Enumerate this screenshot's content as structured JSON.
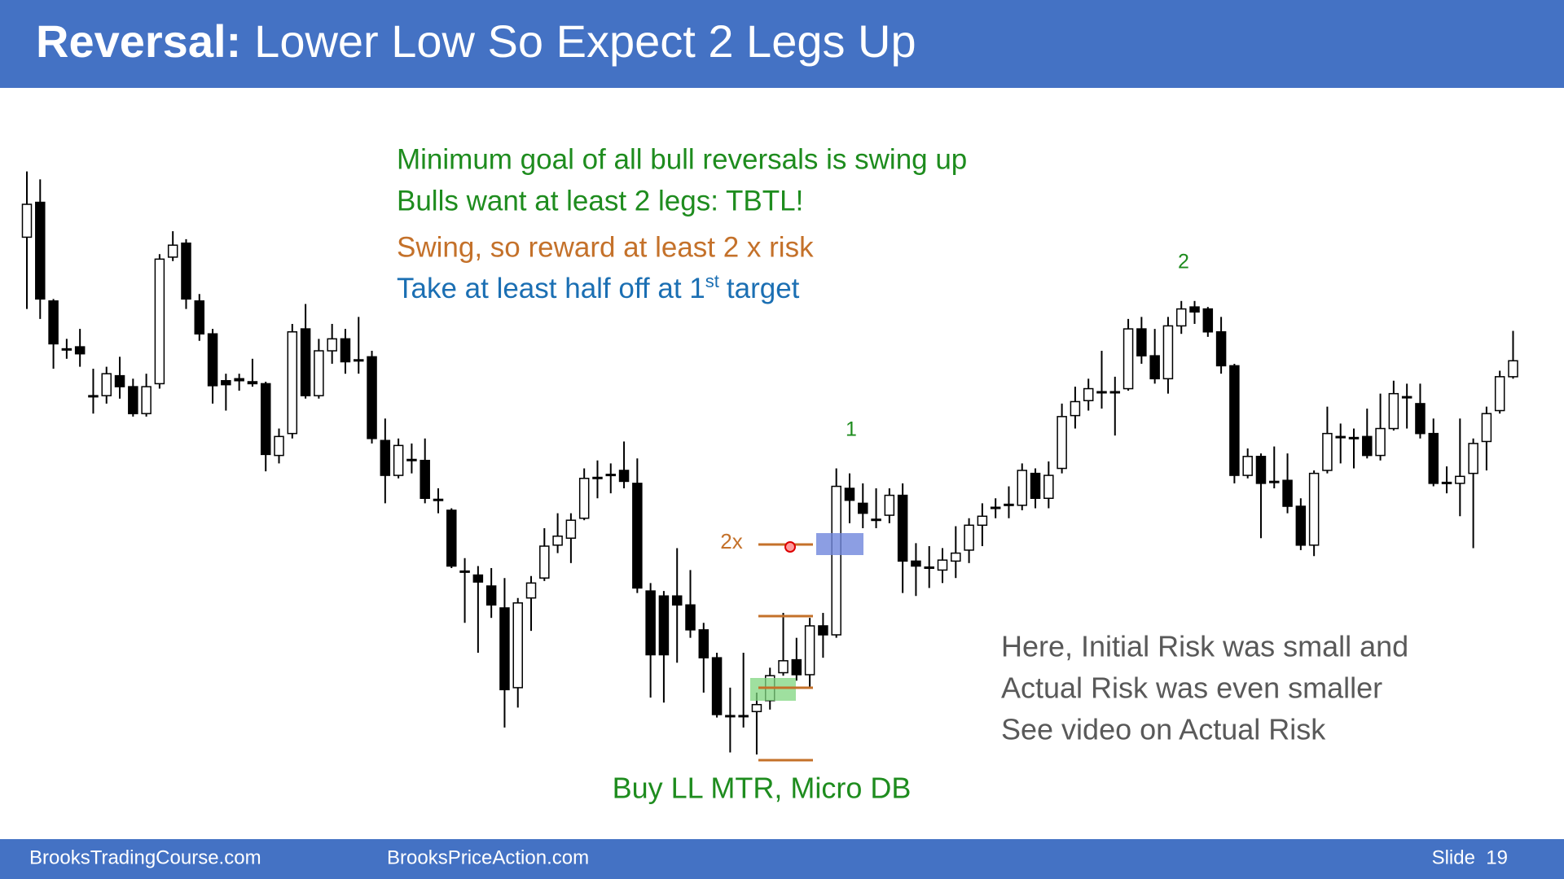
{
  "header": {
    "title_bold": "Reversal:",
    "title_rest": "Lower Low So Expect 2 Legs Up"
  },
  "notes": [
    {
      "text": "Minimum goal of all bull reversals is swing up"
    },
    {
      "text": "Bulls want at least 2 legs: TBTL!"
    },
    {
      "text": "Swing, so reward at least 2 x risk"
    },
    {
      "text": "Take at least half off at 1",
      "sup": "st",
      "tail": "target"
    }
  ],
  "chart_data": {
    "type": "candlestick",
    "open": [
      644,
      679,
      580,
      532,
      534,
      485,
      485,
      505,
      494,
      467,
      497,
      624,
      638,
      580,
      547,
      500,
      502,
      499,
      497,
      425,
      447,
      552,
      485,
      530,
      542,
      521,
      524,
      440,
      405,
      421,
      420,
      381,
      370,
      309,
      305,
      294,
      272,
      192,
      282,
      302,
      335,
      342,
      362,
      403,
      406,
      410,
      397,
      289,
      284,
      284,
      275,
      250,
      222,
      164,
      164,
      168,
      179,
      207,
      220,
      205,
      254,
      245,
      392,
      377,
      361,
      365,
      385,
      319,
      313,
      310,
      319,
      330,
      355,
      373,
      376,
      375,
      407,
      382,
      412,
      465,
      480,
      489,
      489,
      492,
      552,
      525,
      502,
      555,
      574,
      572,
      549,
      515,
      405,
      424,
      399,
      400,
      374,
      335,
      410,
      444,
      443,
      444,
      425,
      452,
      484,
      477,
      447,
      398,
      397,
      407,
      439,
      470,
      504
    ],
    "high": [
      710,
      702,
      582,
      542,
      552,
      512,
      514,
      524,
      502,
      507,
      627,
      650,
      642,
      587,
      552,
      507,
      507,
      522,
      499,
      452,
      557,
      577,
      542,
      557,
      552,
      564,
      530,
      462,
      442,
      437,
      442,
      392,
      372,
      322,
      314,
      312,
      302,
      282,
      304,
      352,
      367,
      367,
      412,
      420,
      417,
      439,
      422,
      297,
      289,
      332,
      310,
      257,
      227,
      192,
      227,
      187,
      212,
      267,
      242,
      262,
      267,
      412,
      407,
      397,
      392,
      392,
      397,
      337,
      334,
      332,
      354,
      362,
      377,
      382,
      394,
      417,
      412,
      419,
      477,
      494,
      502,
      530,
      504,
      562,
      564,
      552,
      564,
      580,
      580,
      574,
      564,
      517,
      432,
      427,
      434,
      427,
      382,
      410,
      474,
      457,
      452,
      472,
      487,
      500,
      497,
      497,
      462,
      414,
      462,
      442,
      474,
      510,
      550
    ],
    "low": [
      572,
      562,
      512,
      522,
      514,
      467,
      477,
      482,
      464,
      464,
      492,
      620,
      572,
      540,
      477,
      470,
      490,
      494,
      409,
      417,
      442,
      482,
      482,
      517,
      507,
      507,
      437,
      377,
      402,
      407,
      377,
      367,
      312,
      257,
      227,
      262,
      152,
      172,
      249,
      299,
      327,
      317,
      360,
      382,
      387,
      392,
      287,
      182,
      177,
      217,
      242,
      187,
      162,
      127,
      152,
      125,
      170,
      204,
      199,
      192,
      222,
      242,
      357,
      352,
      352,
      357,
      287,
      284,
      292,
      297,
      302,
      317,
      334,
      362,
      362,
      370,
      372,
      372,
      407,
      452,
      470,
      472,
      445,
      490,
      517,
      497,
      487,
      547,
      557,
      544,
      507,
      397,
      402,
      342,
      392,
      367,
      330,
      324,
      407,
      417,
      412,
      422,
      420,
      450,
      452,
      442,
      394,
      387,
      364,
      332,
      410,
      467,
      502
    ],
    "close": [
      677,
      582,
      537,
      532,
      527,
      485,
      507,
      494,
      467,
      494,
      622,
      636,
      582,
      547,
      495,
      496,
      500,
      497,
      426,
      444,
      549,
      485,
      530,
      542,
      519,
      521,
      442,
      405,
      435,
      421,
      382,
      381,
      314,
      309,
      298,
      275,
      190,
      277,
      297,
      334,
      344,
      360,
      402,
      403,
      406,
      399,
      292,
      225,
      225,
      275,
      250,
      222,
      165,
      164,
      164,
      175,
      204,
      219,
      205,
      254,
      245,
      394,
      380,
      367,
      361,
      385,
      319,
      314,
      313,
      320,
      327,
      355,
      364,
      373,
      376,
      410,
      382,
      405,
      464,
      479,
      492,
      489,
      489,
      552,
      525,
      502,
      555,
      572,
      569,
      549,
      515,
      405,
      424,
      397,
      399,
      374,
      335,
      407,
      447,
      444,
      443,
      425,
      452,
      487,
      484,
      447,
      397,
      398,
      404,
      437,
      467,
      504,
      520
    ],
    "ylim": [
      0,
      882
    ],
    "up_color": "#ffffff",
    "down_color": "#000000",
    "leg_labels": [
      "1",
      "2"
    ],
    "target_label": "2x"
  },
  "callout": [
    "Here, Initial Risk was small and",
    "Actual Risk was even smaller",
    "See video on Actual Risk"
  ],
  "caption": "Buy LL MTR, Micro DB",
  "footer": {
    "left": "BrooksTradingCourse.com",
    "center": "BrooksPriceAction.com",
    "slide": "Slide  19"
  }
}
